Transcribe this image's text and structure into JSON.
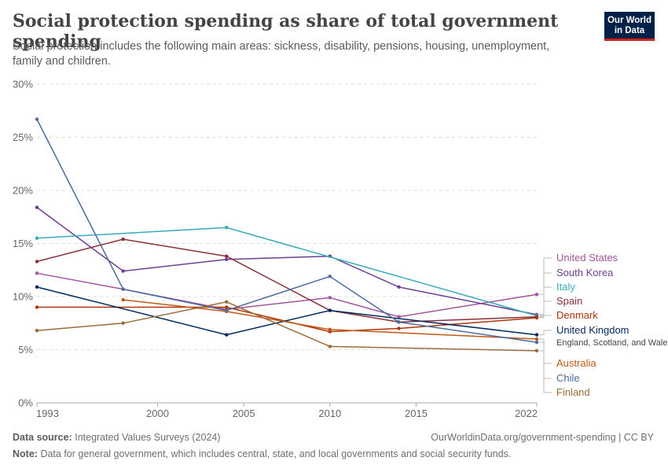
{
  "header": {
    "title": "Social protection spending as share of total government spending",
    "subtitle": "Social protection includes the following main areas: sickness, disability, pensions, housing, unemployment, family and children.",
    "logo_line1": "Our World",
    "logo_line2": "in Data"
  },
  "footer": {
    "source_label": "Data source:",
    "source_text": "Integrated Values Surveys (2024)",
    "url_text": "OurWorldinData.org/government-spending | CC BY",
    "note_label": "Note:",
    "note_text": "Data for general government, which includes central, state, and local governments and social security funds."
  },
  "chart_data": {
    "type": "line",
    "title": "Social protection spending as share of total government spending",
    "xlim": [
      1993,
      2022
    ],
    "ylim": [
      0,
      30
    ],
    "x_ticks": [
      1993,
      2000,
      2005,
      2010,
      2015,
      2022
    ],
    "y_ticks": [
      0,
      5,
      10,
      15,
      20,
      25,
      30
    ],
    "y_tick_labels": [
      "0%",
      "5%",
      "10%",
      "15%",
      "20%",
      "25%",
      "30%"
    ],
    "grid": "horizontal dashed",
    "legend": "right",
    "series": [
      {
        "name": "United States",
        "color": "#a2559c",
        "points": [
          [
            1993,
            12.2
          ],
          [
            1998,
            10.7
          ],
          [
            2004,
            8.8
          ],
          [
            2010,
            9.9
          ],
          [
            2014,
            8.1
          ],
          [
            2022,
            10.2
          ]
        ]
      },
      {
        "name": "South Korea",
        "color": "#6d3e91",
        "points": [
          [
            1993,
            18.4
          ],
          [
            1998,
            12.4
          ],
          [
            2004,
            13.5
          ],
          [
            2010,
            13.8
          ],
          [
            2014,
            10.9
          ],
          [
            2022,
            8.3
          ]
        ]
      },
      {
        "name": "Italy",
        "color": "#38aaba",
        "points": [
          [
            1993,
            15.5
          ],
          [
            2004,
            16.5
          ],
          [
            2022,
            8.2
          ]
        ]
      },
      {
        "name": "Spain",
        "color": "#883039",
        "points": [
          [
            1993,
            13.3
          ],
          [
            1998,
            15.4
          ],
          [
            2004,
            13.8
          ],
          [
            2010,
            8.7
          ],
          [
            2014,
            7.6
          ],
          [
            2022,
            8.1
          ]
        ]
      },
      {
        "name": "Denmark",
        "color": "#b13507",
        "points": [
          [
            1993,
            9.0
          ],
          [
            2004,
            9.0
          ],
          [
            2010,
            6.7
          ],
          [
            2014,
            7.0
          ],
          [
            2022,
            8.0
          ]
        ]
      },
      {
        "name": "United Kingdom",
        "sublabel": "England, Scotland, and Wales",
        "color": "#00295b",
        "points": [
          [
            1993,
            10.9
          ],
          [
            2004,
            6.4
          ],
          [
            2010,
            8.7
          ],
          [
            2022,
            6.4
          ]
        ]
      },
      {
        "name": "Australia",
        "color": "#c05917",
        "points": [
          [
            1998,
            9.7
          ],
          [
            2004,
            8.6
          ],
          [
            2010,
            6.9
          ],
          [
            2022,
            6.0
          ]
        ]
      },
      {
        "name": "Chile",
        "color": "#4c6a9c",
        "points": [
          [
            1993,
            26.7
          ],
          [
            1998,
            10.7
          ],
          [
            2004,
            8.7
          ],
          [
            2010,
            11.9
          ],
          [
            2014,
            7.6
          ],
          [
            2022,
            5.7
          ]
        ]
      },
      {
        "name": "Finland",
        "color": "#996d39",
        "points": [
          [
            1993,
            6.8
          ],
          [
            1998,
            7.5
          ],
          [
            2004,
            9.5
          ],
          [
            2010,
            5.3
          ],
          [
            2022,
            4.9
          ]
        ]
      }
    ]
  }
}
